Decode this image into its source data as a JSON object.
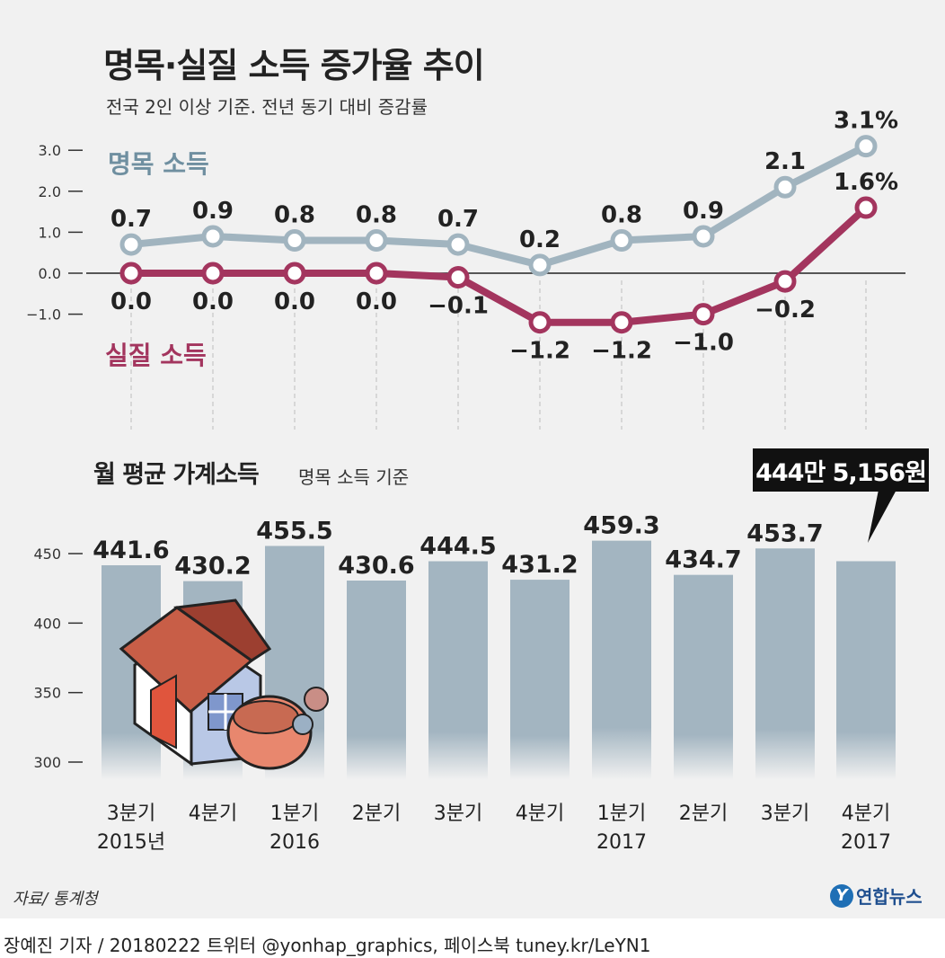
{
  "title": "명목·실질 소득 증가율 추이",
  "subtitle": "전국 2인 이상 기준. 전년 동기 대비 증감률",
  "colors": {
    "nominal": "#a1b4bf",
    "real": "#a3355e",
    "bar": "#a3b5c1",
    "nominal_label": "#6f8fa0"
  },
  "chart_data": [
    {
      "type": "line",
      "x": [
        "3분기 2015년",
        "4분기",
        "1분기 2016",
        "2분기",
        "3분기",
        "4분기",
        "1분기 2017",
        "2분기",
        "3분기",
        "4분기 2017"
      ],
      "series": [
        {
          "name": "명목 소득",
          "values": [
            0.7,
            0.9,
            0.8,
            0.8,
            0.7,
            0.2,
            0.8,
            0.9,
            2.1,
            3.1
          ],
          "labels": [
            "0.7",
            "0.9",
            "0.8",
            "0.8",
            "0.7",
            "0.2",
            "0.8",
            "0.9",
            "2.1",
            "3.1%"
          ]
        },
        {
          "name": "실질 소득",
          "values": [
            0.0,
            0.0,
            0.0,
            0.0,
            -0.1,
            -1.2,
            -1.2,
            -1.0,
            -0.2,
            1.6
          ],
          "labels": [
            "0.0",
            "0.0",
            "0.0",
            "0.0",
            "−0.1",
            "−1.2",
            "−1.2",
            "−1.0",
            "−0.2",
            "1.6%"
          ]
        }
      ],
      "yticks": [
        "3.0",
        "2.0",
        "1.0",
        "0.0",
        "−1.0"
      ],
      "ylim": [
        -1.0,
        3.0
      ],
      "grid": false
    },
    {
      "type": "bar",
      "title": "월 평균 가계소득",
      "subtitle": "명목 소득 기준",
      "categories": [
        [
          "3분기",
          "2015년"
        ],
        [
          "4분기",
          ""
        ],
        [
          "1분기",
          "2016"
        ],
        [
          "2분기",
          ""
        ],
        [
          "3분기",
          ""
        ],
        [
          "4분기",
          ""
        ],
        [
          "1분기",
          "2017"
        ],
        [
          "2분기",
          ""
        ],
        [
          "3분기",
          ""
        ],
        [
          "4분기",
          "2017"
        ]
      ],
      "values": [
        441.6,
        430.2,
        455.5,
        430.6,
        444.5,
        431.2,
        459.3,
        434.7,
        453.7,
        444.5156
      ],
      "labels": [
        "441.6",
        "430.2",
        "455.5",
        "430.6",
        "444.5",
        "431.2",
        "459.3",
        "434.7",
        "453.7",
        ""
      ],
      "yticks": [
        "450",
        "400",
        "350",
        "300"
      ],
      "ylim": [
        300,
        450
      ],
      "callout": "444만 5,156원"
    }
  ],
  "source": "자료/ 통계청",
  "logo": {
    "mark": "Y",
    "text": "연합뉴스"
  },
  "credit": "장예진 기자 / 20180222 트위터 @yonhap_graphics, 페이스북 tuney.kr/LeYN1"
}
